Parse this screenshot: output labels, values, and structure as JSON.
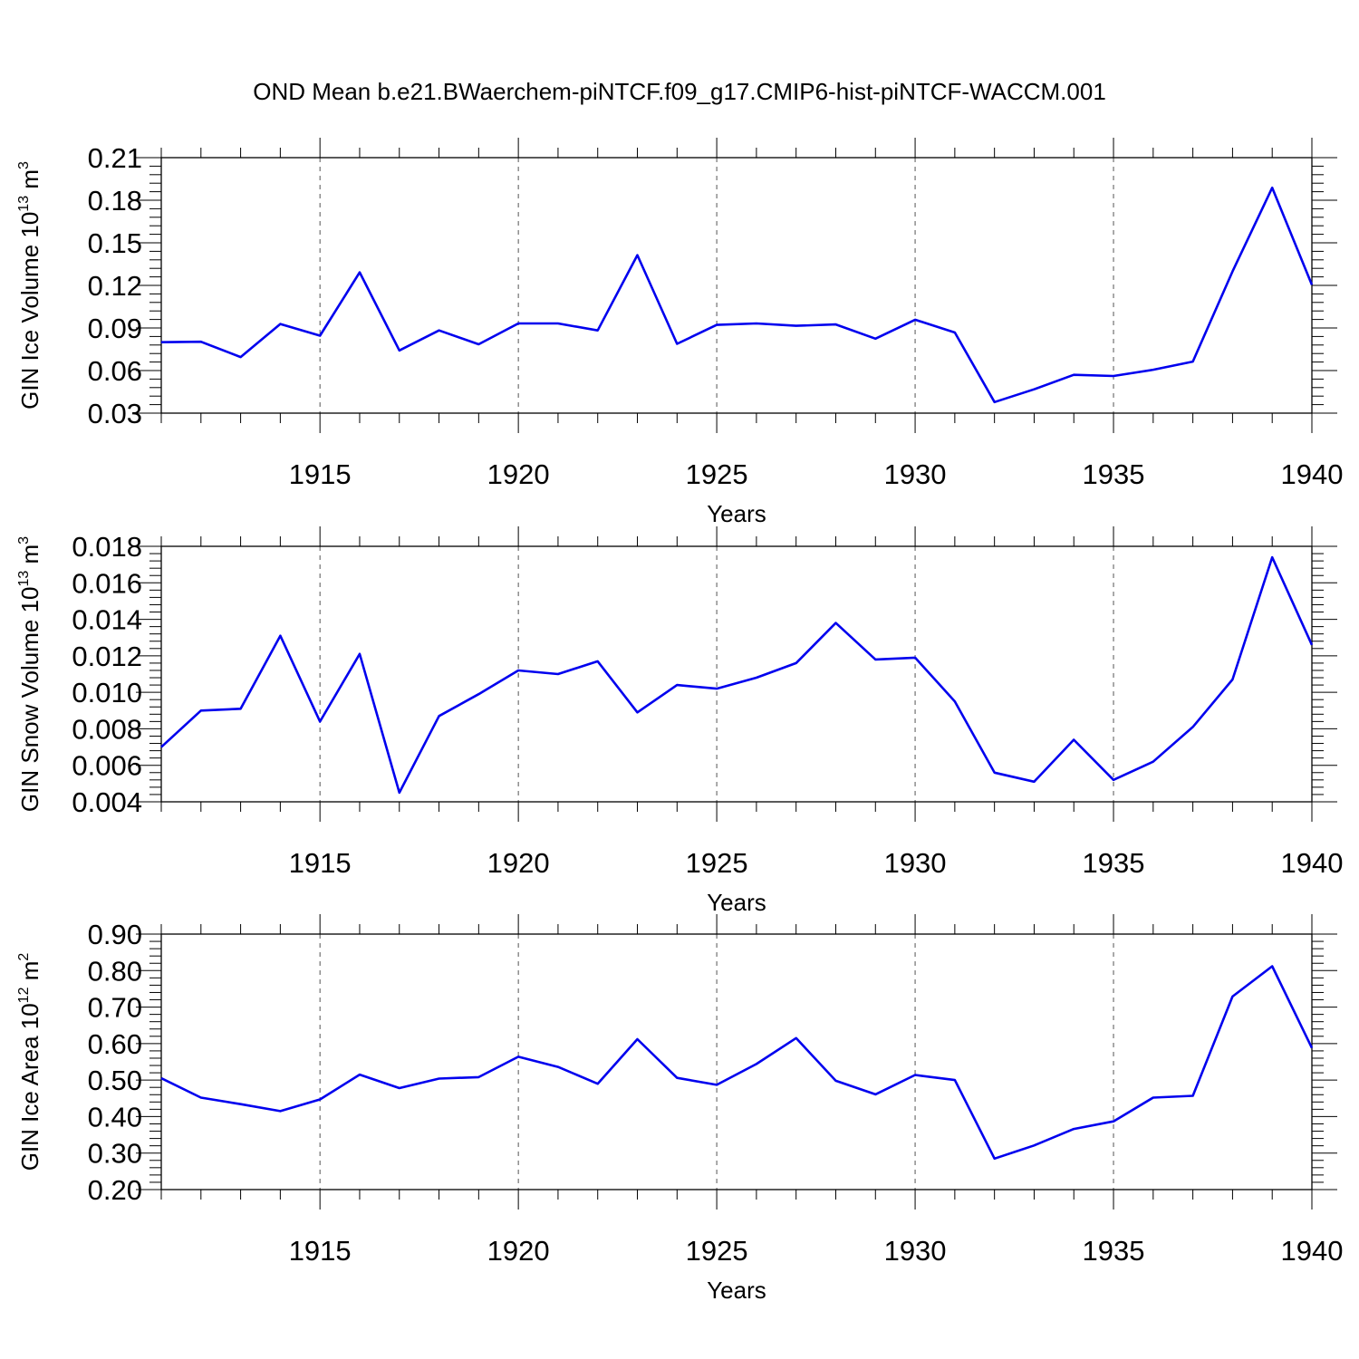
{
  "figure_title": "OND Mean b.e21.BWaerchem-piNTCF.f09_g17.CMIP6-hist-piNTCF-WACCM.001",
  "chart_data": [
    {
      "type": "line",
      "title": "OND Mean b.e21.BWaerchem-piNTCF.f09_g17.CMIP6-hist-piNTCF-WACCM.001",
      "xlabel": "Years",
      "ylabel": {
        "main": "GIN Ice Volume 10",
        "exp": "13",
        "unit": " m",
        "unit_exp": "3"
      },
      "xlim": [
        1911,
        1940
      ],
      "ylim": [
        0.03,
        0.21
      ],
      "xticks": [
        "1915",
        "1920",
        "1925",
        "1930",
        "1935",
        "1940"
      ],
      "yticks": [
        "0.03",
        "0.06",
        "0.09",
        "0.12",
        "0.15",
        "0.18",
        "0.21"
      ],
      "line_color": "#0000ee",
      "x": [
        1911,
        1912,
        1913,
        1914,
        1915,
        1916,
        1917,
        1918,
        1919,
        1920,
        1921,
        1922,
        1923,
        1924,
        1925,
        1926,
        1927,
        1928,
        1929,
        1930,
        1931,
        1932,
        1933,
        1934,
        1935,
        1936,
        1937,
        1938,
        1939,
        1940
      ],
      "values": [
        0.08,
        0.0803,
        0.0695,
        0.0928,
        0.0846,
        0.1292,
        0.0742,
        0.0883,
        0.0785,
        0.0932,
        0.0932,
        0.0883,
        0.1413,
        0.0788,
        0.0922,
        0.0932,
        0.0915,
        0.0925,
        0.0825,
        0.0958,
        0.0868,
        0.0378,
        0.0468,
        0.057,
        0.0562,
        0.0606,
        0.0663,
        0.1298,
        0.1888,
        0.1204
      ]
    },
    {
      "type": "line",
      "xlabel": "Years",
      "ylabel": {
        "main": "GIN Snow Volume 10",
        "exp": "13",
        "unit": " m",
        "unit_exp": "3"
      },
      "xlim": [
        1911,
        1940
      ],
      "ylim": [
        0.004,
        0.018
      ],
      "xticks": [
        "1915",
        "1920",
        "1925",
        "1930",
        "1935",
        "1940"
      ],
      "yticks": [
        "0.004",
        "0.006",
        "0.008",
        "0.010",
        "0.012",
        "0.014",
        "0.016",
        "0.018"
      ],
      "line_color": "#0000ee",
      "x": [
        1911,
        1912,
        1913,
        1914,
        1915,
        1916,
        1917,
        1918,
        1919,
        1920,
        1921,
        1922,
        1923,
        1924,
        1925,
        1926,
        1927,
        1928,
        1929,
        1930,
        1931,
        1932,
        1933,
        1934,
        1935,
        1936,
        1937,
        1938,
        1939,
        1940
      ],
      "values": [
        0.007,
        0.009,
        0.0091,
        0.0131,
        0.0084,
        0.0121,
        0.0045,
        0.0087,
        0.0099,
        0.0112,
        0.011,
        0.0117,
        0.0089,
        0.0104,
        0.0102,
        0.0108,
        0.0116,
        0.0138,
        0.0118,
        0.0119,
        0.0095,
        0.0056,
        0.0051,
        0.0074,
        0.0052,
        0.0062,
        0.0081,
        0.0107,
        0.0174,
        0.0126
      ]
    },
    {
      "type": "line",
      "xlabel": "Years",
      "ylabel": {
        "main": "GIN Ice Area 10",
        "exp": "12",
        "unit": " m",
        "unit_exp": "2"
      },
      "xlim": [
        1911,
        1940
      ],
      "ylim": [
        0.2,
        0.9
      ],
      "xticks": [
        "1915",
        "1920",
        "1925",
        "1930",
        "1935",
        "1940"
      ],
      "yticks": [
        "0.20",
        "0.30",
        "0.40",
        "0.50",
        "0.60",
        "0.70",
        "0.80",
        "0.90"
      ],
      "line_color": "#0000ee",
      "x": [
        1911,
        1912,
        1913,
        1914,
        1915,
        1916,
        1917,
        1918,
        1919,
        1920,
        1921,
        1922,
        1923,
        1924,
        1925,
        1926,
        1927,
        1928,
        1929,
        1930,
        1931,
        1932,
        1933,
        1934,
        1935,
        1936,
        1937,
        1938,
        1939,
        1940
      ],
      "values": [
        0.505,
        0.452,
        0.434,
        0.415,
        0.447,
        0.515,
        0.478,
        0.504,
        0.508,
        0.564,
        0.536,
        0.49,
        0.612,
        0.506,
        0.487,
        0.544,
        0.615,
        0.498,
        0.461,
        0.514,
        0.5,
        0.285,
        0.321,
        0.366,
        0.387,
        0.452,
        0.457,
        0.729,
        0.812,
        0.588
      ]
    }
  ]
}
